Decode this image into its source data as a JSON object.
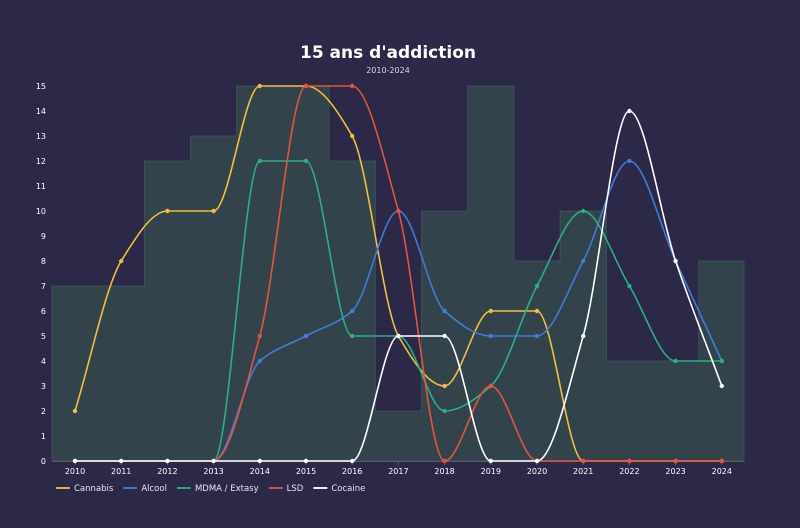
{
  "chart_data": {
    "type": "line",
    "title": "15 ans d'addiction",
    "subtitle": "2010-2024",
    "xlabel": "",
    "ylabel": "",
    "categories": [
      "2010",
      "2011",
      "2012",
      "2013",
      "2014",
      "2015",
      "2016",
      "2017",
      "2018",
      "2019",
      "2020",
      "2021",
      "2022",
      "2023",
      "2024"
    ],
    "ylim": [
      0,
      15
    ],
    "yticks": [
      0,
      1,
      2,
      3,
      4,
      5,
      6,
      7,
      8,
      9,
      10,
      11,
      12,
      13,
      14,
      15
    ],
    "legend_position": "bottom-left",
    "background_steps": {
      "name": "background",
      "color": "#34464c",
      "values": [
        7,
        7,
        12,
        13,
        15,
        15,
        12,
        2,
        10,
        15,
        8,
        10,
        4,
        4,
        8
      ]
    },
    "series": [
      {
        "name": "Cannabis",
        "color": "#f2bf3a",
        "values": [
          2,
          8,
          10,
          10,
          15,
          15,
          13,
          5,
          3,
          6,
          6,
          0,
          0,
          0,
          0
        ]
      },
      {
        "name": "Alcool",
        "color": "#3f7bd6",
        "values": [
          0,
          0,
          0,
          0,
          4,
          5,
          6,
          10,
          6,
          5,
          5,
          8,
          12,
          8,
          4
        ]
      },
      {
        "name": "MDMA / Extasy",
        "color": "#2bb07f",
        "values": [
          0,
          0,
          0,
          0,
          12,
          12,
          5,
          5,
          2,
          3,
          7,
          10,
          7,
          4,
          4
        ]
      },
      {
        "name": "LSD",
        "color": "#e5533e",
        "values": [
          0,
          0,
          0,
          0,
          5,
          15,
          15,
          10,
          0,
          3,
          0,
          0,
          0,
          0,
          0
        ]
      },
      {
        "name": "Cocaine",
        "color": "#ffffff",
        "values": [
          0,
          0,
          0,
          0,
          0,
          0,
          0,
          5,
          5,
          0,
          0,
          5,
          14,
          8,
          3
        ]
      }
    ]
  }
}
